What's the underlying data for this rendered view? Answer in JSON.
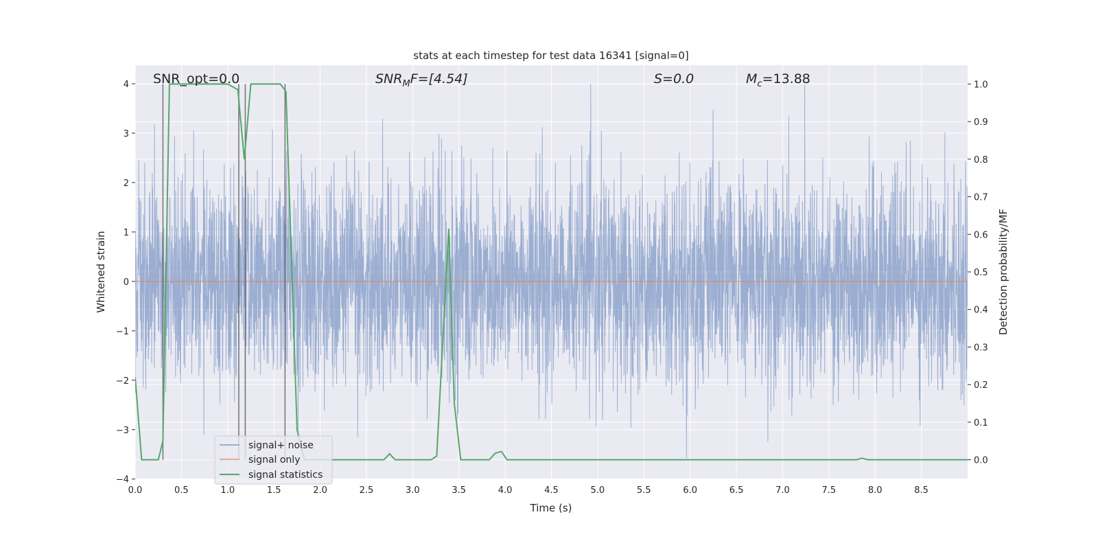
{
  "chart_data": {
    "type": "line",
    "title": "stats at each timestep for test data 16341 [signal=0]",
    "xlabel": "Time (s)",
    "ylabel": "Whitened strain",
    "ylabel_right": "Detection probability/MF",
    "xlim": [
      0.0,
      9.0
    ],
    "ylim": [
      -3.99,
      4.375
    ],
    "ylim_right": [
      -0.05,
      1.05
    ],
    "xticks": [
      "0.0",
      "0.5",
      "1.0",
      "1.5",
      "2.0",
      "2.5",
      "3.0",
      "3.5",
      "4.0",
      "4.5",
      "5.0",
      "5.5",
      "6.0",
      "6.5",
      "7.0",
      "7.5",
      "8.0",
      "8.5"
    ],
    "yticks": [
      "4",
      "3",
      "2",
      "1",
      "0",
      "−1",
      "−2",
      "−3",
      "−4"
    ],
    "yticks_right": [
      "1.0",
      "0.9",
      "0.8",
      "0.7",
      "0.6",
      "0.5",
      "0.4",
      "0.3",
      "0.2",
      "0.1",
      "0.0"
    ],
    "grid": true,
    "legend_placement": "lower-left",
    "annotations": {
      "snr_opt": "SNR_opt=0.0",
      "snr_mf_main": "SNR",
      "snr_mf_sub": "M",
      "snr_mf_rest": "F=[4.54]",
      "s": "S=0.0",
      "mc_main": "M",
      "mc_sub": "c",
      "mc_rest": "=13.88"
    },
    "series": [
      {
        "name": "signal+ noise",
        "color": "#4c72b0",
        "alpha": 0.5,
        "approx_range": [
          -3.6,
          4.0
        ],
        "axis": "left"
      },
      {
        "name": "signal only",
        "color": "#dd8452",
        "x": [
          0,
          9.0
        ],
        "y": [
          0,
          0
        ],
        "axis": "left"
      },
      {
        "name": "signal statistics",
        "color": "#55a868",
        "axis": "right",
        "x": [
          0.0,
          0.07,
          0.25,
          0.3,
          0.37,
          1.0,
          1.11,
          1.18,
          1.25,
          1.57,
          1.63,
          1.75,
          1.83,
          1.88,
          2.69,
          2.75,
          2.81,
          3.2,
          3.26,
          3.39,
          3.45,
          3.52,
          3.83,
          3.89,
          3.96,
          4.02,
          7.8,
          7.86,
          7.92,
          9.0
        ],
        "y": [
          0.22,
          0.0,
          0.0,
          0.05,
          1.0,
          1.0,
          0.985,
          0.8,
          1.0,
          1.0,
          0.98,
          0.08,
          0.0,
          0.0,
          0.0,
          0.016,
          0.0,
          0.0,
          0.01,
          0.615,
          0.15,
          0.0,
          0.0,
          0.017,
          0.022,
          0.0,
          0.0,
          0.004,
          0.0,
          0.0
        ]
      }
    ],
    "vertical_lines_x": [
      0.3,
      1.12,
      1.19,
      1.62
    ]
  }
}
